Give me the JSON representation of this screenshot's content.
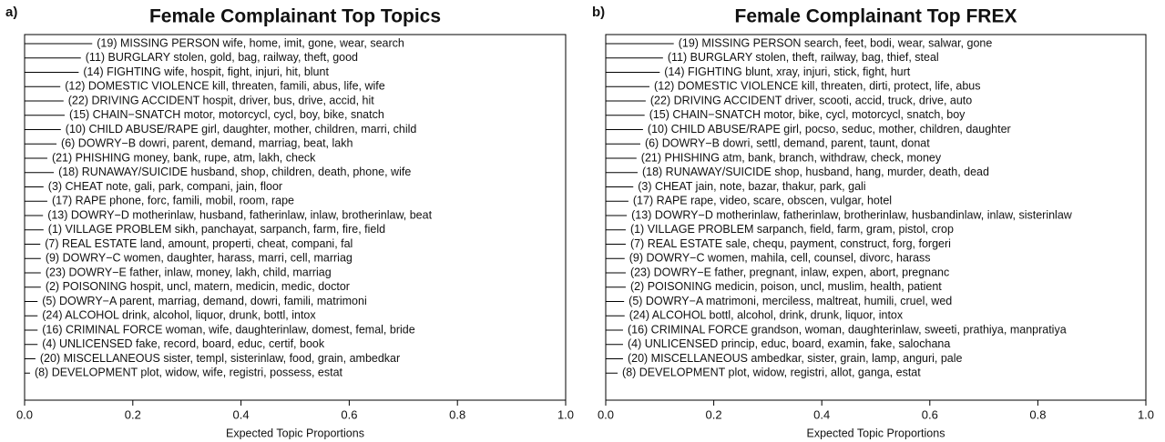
{
  "chart_data": [
    {
      "type": "bar",
      "panel_label": "a)",
      "title": "Female Complainant Top Topics",
      "xlabel": "Expected Topic Proportions",
      "color": "#000000",
      "categories": [
        "(19) MISSING PERSON wife, home, imit, gone, wear, search",
        "(11) BURGLARY stolen, gold, bag, railway, theft, good",
        "(14) FIGHTING wife, hospit, fight, injuri, hit, blunt",
        "(12) DOMESTIC VIOLENCE kill, threaten, famili, abus, life, wife",
        "(22) DRIVING ACCIDENT hospit, driver, bus, drive, accid, hit",
        "(15) CHAIN−SNATCH motor, motorcycl, cycl, boy, bike, snatch",
        "(10) CHILD ABUSE/RAPE girl, daughter, mother, children, marri, child",
        "(6) DOWRY−B dowri, parent, demand, marriag, beat, lakh",
        "(21) PHISHING money, bank, rupe, atm, lakh, check",
        "(18) RUNAWAY/SUICIDE husband, shop, children, death, phone, wife",
        "(3) CHEAT note, gali, park, compani, jain, floor",
        "(17) RAPE phone, forc, famili, mobil, room, rape",
        "(13) DOWRY−D motherinlaw, husband, fatherinlaw, inlaw, brotherinlaw, beat",
        "(1) VILLAGE PROBLEM sikh, panchayat, sarpanch, farm, fire, field",
        "(7) REAL ESTATE land, amount, properti, cheat, compani, fal",
        "(9) DOWRY−C women, daughter, harass, marri, cell, marriag",
        "(23) DOWRY−E father, inlaw, money, lakh, child, marriag",
        "(2) POISONING hospit, uncl, matern, medicin, medic, doctor",
        "(5) DOWRY−A parent, marriag, demand, dowri, famili, matrimoni",
        "(24) ALCOHOL drink, alcohol, liquor, drunk, bottl, intox",
        "(16) CRIMINAL FORCE woman, wife, daughterinlaw, domest, femal, bride",
        "(4) UNLICENSED fake, record, board, educ, certif, book",
        "(20) MISCELLANEOUS sister, templ, sisterinlaw, food, grain, ambedkar",
        "(8) DEVELOPMENT plot, widow, wife, registri, possess, estat"
      ],
      "values": [
        0.125,
        0.104,
        0.1,
        0.066,
        0.072,
        0.074,
        0.067,
        0.059,
        0.042,
        0.054,
        0.035,
        0.042,
        0.034,
        0.035,
        0.029,
        0.03,
        0.03,
        0.03,
        0.024,
        0.024,
        0.024,
        0.024,
        0.02,
        0.01
      ],
      "xlim": [
        0,
        1
      ],
      "xticks": [
        {
          "value": 0,
          "label": "0.0"
        },
        0.2,
        0.4,
        0.6,
        0.8,
        {
          "value": 1,
          "label": "1.0"
        }
      ]
    },
    {
      "type": "bar",
      "panel_label": "b)",
      "title": "Female Complainant Top FREX",
      "xlabel": "Expected Topic Proportions",
      "color": "#000000",
      "categories": [
        "(19) MISSING PERSON search, feet, bodi, wear, salwar, gone",
        "(11) BURGLARY stolen, theft, railway, bag, thief, steal",
        "(14) FIGHTING blunt, xray, injuri, stick, fight, hurt",
        "(12) DOMESTIC VIOLENCE kill, threaten, dirti, protect, life, abus",
        "(22) DRIVING ACCIDENT driver, scooti, accid, truck, drive, auto",
        "(15) CHAIN−SNATCH motor, bike, cycl, motorcycl, snatch, boy",
        "(10) CHILD ABUSE/RAPE girl, pocso, seduc, mother, children, daughter",
        "(6) DOWRY−B dowri, settl, demand, parent, taunt, donat",
        "(21) PHISHING atm, bank, branch, withdraw, check, money",
        "(18) RUNAWAY/SUICIDE shop, husband, hang, murder, death, dead",
        "(3) CHEAT jain, note, bazar, thakur, park, gali",
        "(17) RAPE rape, video, scare, obscen, vulgar, hotel",
        "(13) DOWRY−D motherinlaw, fatherinlaw, brotherinlaw, husbandinlaw, inlaw, sisterinlaw",
        "(1) VILLAGE PROBLEM sarpanch, field, farm, gram, pistol, crop",
        "(7) REAL ESTATE sale, chequ, payment, construct, forg, forgeri",
        "(9) DOWRY−C women, mahila, cell, counsel, divorc, harass",
        "(23) DOWRY−E father, pregnant, inlaw, expen, abort, pregnanc",
        "(2) POISONING medicin, poison, uncl, muslim, health, patient",
        "(5) DOWRY−A matrimoni, merciless, maltreat, humili, cruel, wed",
        "(24) ALCOHOL bottl, alcohol, drink, drunk, liquor, intox",
        "(16) CRIMINAL FORCE grandson, woman, daughterinlaw, sweeti, prathiya, manpratiya",
        "(4) UNLICENSED princip, educ, board, examin, fake, salochana",
        "(20) MISCELLANEOUS ambedkar, sister, grain, lamp, anguri, pale",
        "(8) DEVELOPMENT plot, widow, registri, allot, ganga, estat"
      ],
      "values": [
        0.126,
        0.106,
        0.1,
        0.081,
        0.074,
        0.072,
        0.069,
        0.064,
        0.057,
        0.059,
        0.051,
        0.042,
        0.039,
        0.037,
        0.037,
        0.035,
        0.037,
        0.037,
        0.034,
        0.035,
        0.032,
        0.032,
        0.032,
        0.022
      ],
      "xlim": [
        0,
        1
      ],
      "xticks": [
        {
          "value": 0,
          "label": "0.0"
        },
        0.2,
        0.4,
        0.6,
        0.8,
        {
          "value": 1,
          "label": "1.0"
        }
      ]
    }
  ]
}
